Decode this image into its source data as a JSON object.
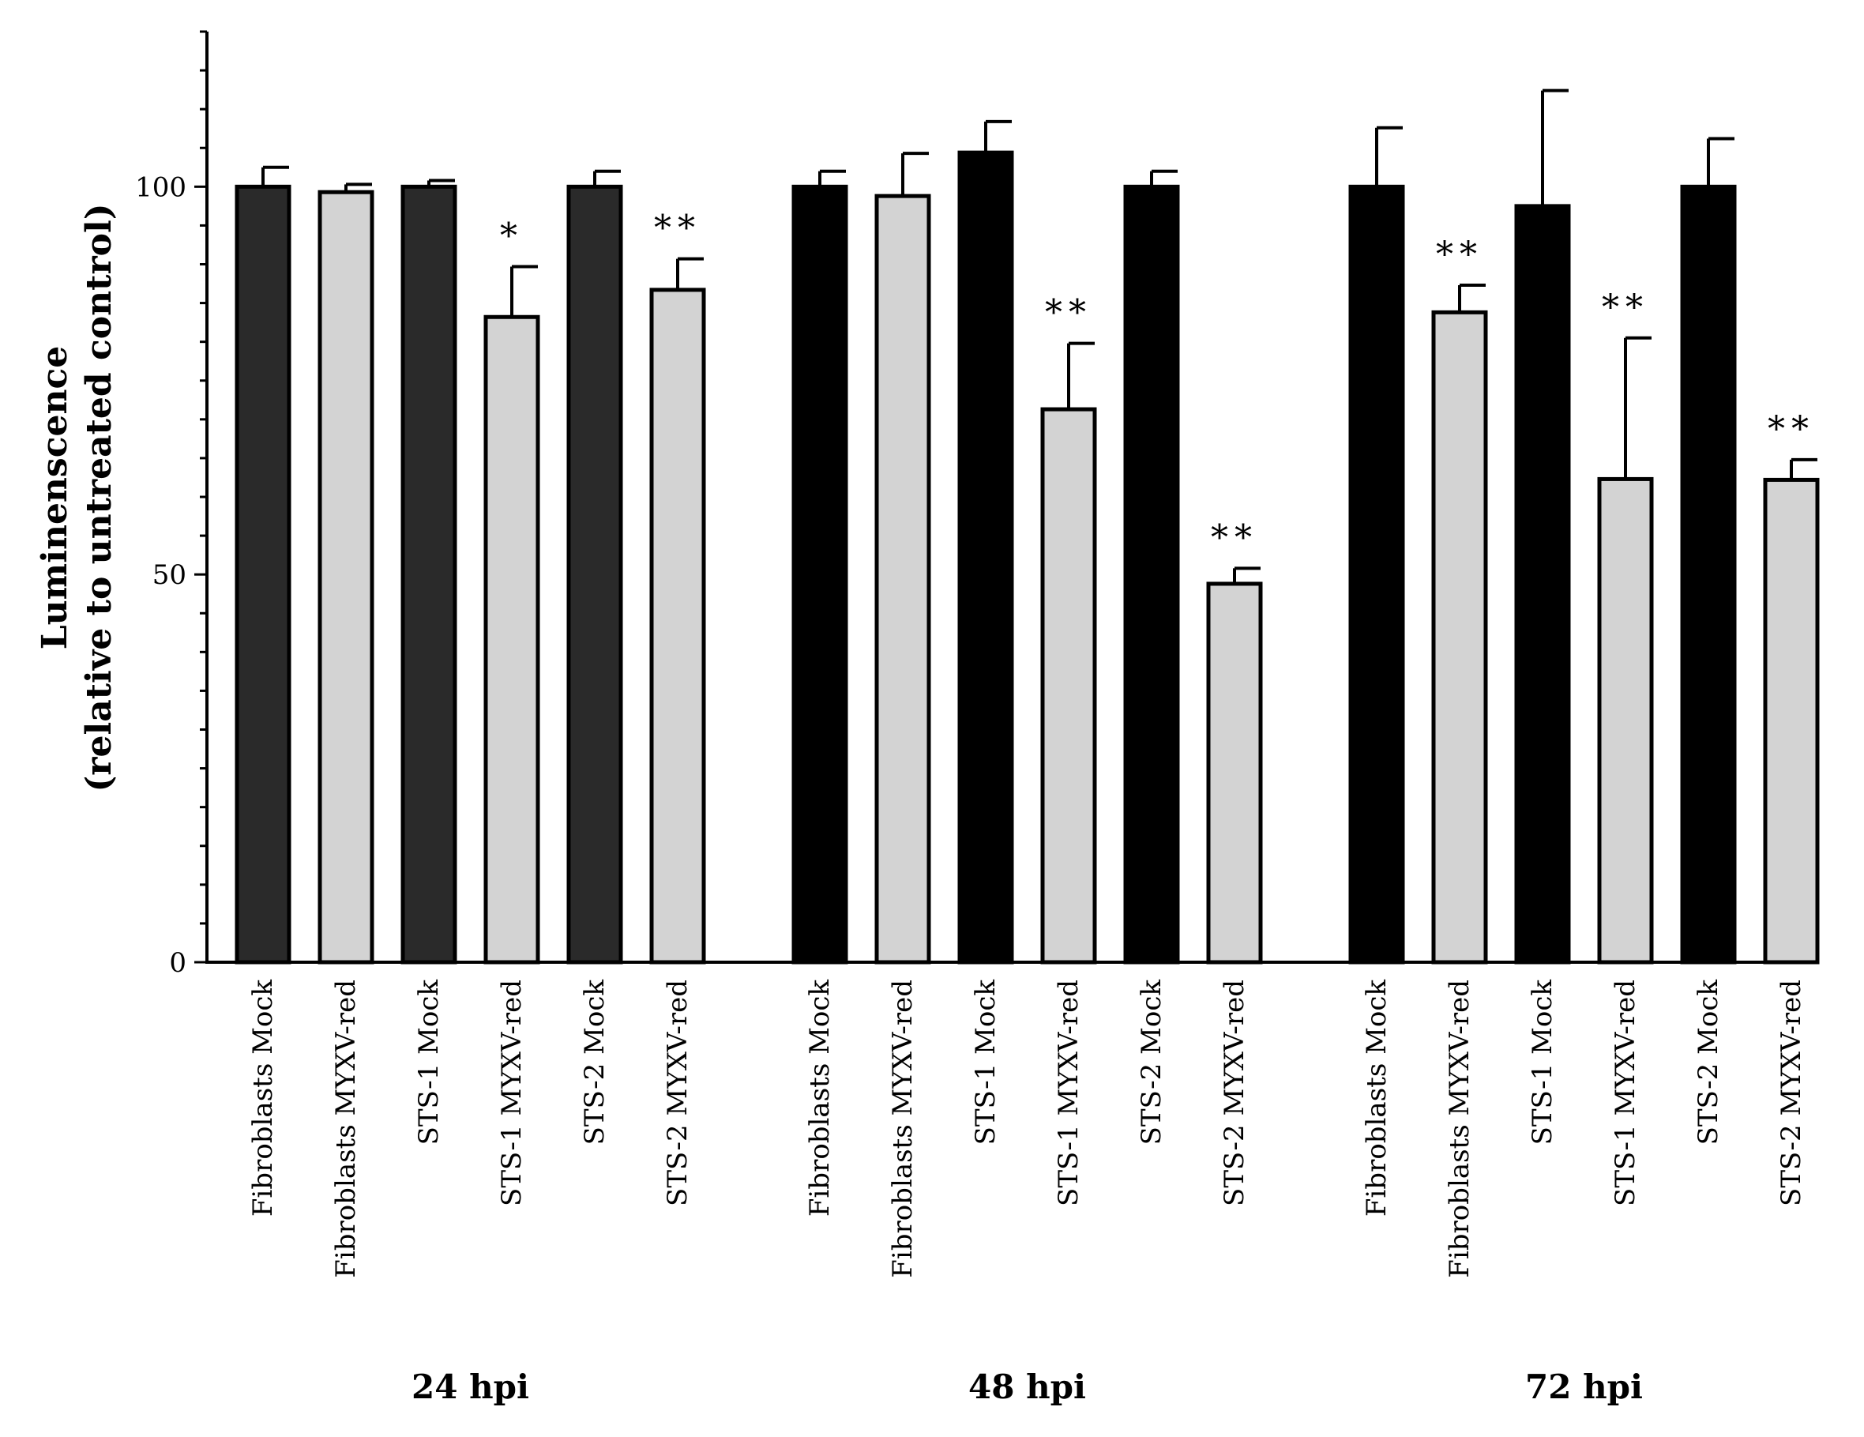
{
  "chart_data": {
    "type": "bar",
    "ylabel_lines": [
      "Luminenscence",
      "(relative to untreated control)"
    ],
    "y_ticks": [
      "0",
      "50",
      "100"
    ],
    "ylim": [
      0,
      120
    ],
    "y_major_step": 50,
    "y_minor_step": 5,
    "grid": false,
    "groups": [
      {
        "label": "24 hpi",
        "mock_color": "#2a2a2a",
        "bars": [
          {
            "category": "Fibroblasts Mock",
            "value": 100,
            "error": 2.5,
            "kind": "mock",
            "sig": ""
          },
          {
            "category": "Fibroblasts MYXV-red",
            "value": 99.3,
            "error": 1.0,
            "kind": "virus",
            "sig": ""
          },
          {
            "category": "STS-1 Mock",
            "value": 100,
            "error": 0.8,
            "kind": "mock",
            "sig": ""
          },
          {
            "category": "STS-1 MYXV-red",
            "value": 83.2,
            "error": 6.5,
            "kind": "virus",
            "sig": "*"
          },
          {
            "category": "STS-2 Mock",
            "value": 100,
            "error": 2.0,
            "kind": "mock",
            "sig": ""
          },
          {
            "category": "STS-2 MYXV-red",
            "value": 86.7,
            "error": 4.0,
            "kind": "virus",
            "sig": "**"
          }
        ]
      },
      {
        "label": "48 hpi",
        "mock_color": "#000000",
        "bars": [
          {
            "category": "Fibroblasts Mock",
            "value": 100,
            "error": 2.0,
            "kind": "mock",
            "sig": ""
          },
          {
            "category": "Fibroblasts MYXV-red",
            "value": 98.8,
            "error": 5.5,
            "kind": "virus",
            "sig": ""
          },
          {
            "category": "STS-1 Mock",
            "value": 104.4,
            "error": 4.0,
            "kind": "mock",
            "sig": ""
          },
          {
            "category": "STS-1 MYXV-red",
            "value": 71.3,
            "error": 8.5,
            "kind": "virus",
            "sig": "**"
          },
          {
            "category": "STS-2 Mock",
            "value": 100,
            "error": 2.0,
            "kind": "mock",
            "sig": ""
          },
          {
            "category": "STS-2 MYXV-red",
            "value": 48.8,
            "error": 2.0,
            "kind": "virus",
            "sig": "**"
          }
        ]
      },
      {
        "label": "72 hpi",
        "mock_color": "#000000",
        "bars": [
          {
            "category": "Fibroblasts Mock",
            "value": 100,
            "error": 7.6,
            "kind": "mock",
            "sig": ""
          },
          {
            "category": "Fibroblasts MYXV-red",
            "value": 83.8,
            "error": 3.5,
            "kind": "virus",
            "sig": "**"
          },
          {
            "category": "STS-1 Mock",
            "value": 97.5,
            "error": 14.9,
            "kind": "mock",
            "sig": ""
          },
          {
            "category": "STS-1 MYXV-red",
            "value": 62.3,
            "error": 18.2,
            "kind": "virus",
            "sig": "**"
          },
          {
            "category": "STS-2 Mock",
            "value": 100,
            "error": 6.2,
            "kind": "mock",
            "sig": ""
          },
          {
            "category": "STS-2 MYXV-red",
            "value": 62.2,
            "error": 2.6,
            "kind": "virus",
            "sig": "**"
          }
        ]
      }
    ],
    "colors": {
      "virus_fill": "#d3d3d3",
      "outline": "#000000"
    }
  }
}
